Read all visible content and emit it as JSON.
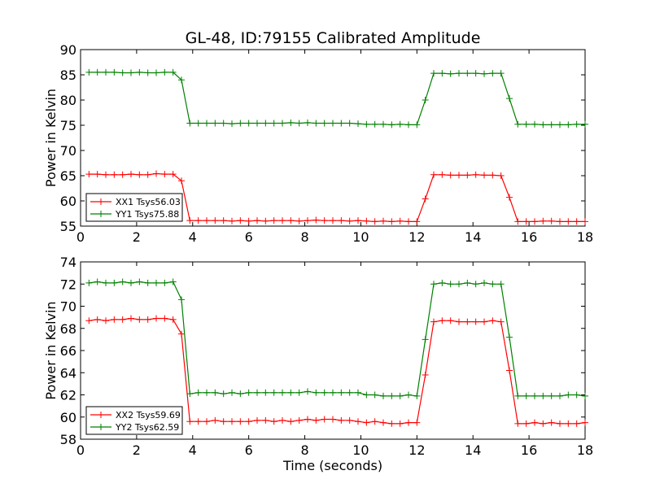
{
  "chart_data": [
    {
      "type": "line",
      "title": "GL-48, ID:79155 Calibrated Amplitude",
      "xlabel": "",
      "ylabel": "Power in Kelvin",
      "xlim": [
        0,
        18
      ],
      "ylim": [
        55,
        90
      ],
      "xticks": [
        "0",
        "2",
        "4",
        "6",
        "8",
        "10",
        "12",
        "14",
        "16",
        "18"
      ],
      "yticks": [
        "55",
        "60",
        "65",
        "70",
        "75",
        "80",
        "85",
        "90"
      ],
      "grid": false,
      "legend_position": "lower-left",
      "x": [
        0.3,
        0.6,
        0.9,
        1.2,
        1.5,
        1.8,
        2.1,
        2.4,
        2.7,
        3.0,
        3.3,
        3.6,
        3.9,
        4.2,
        4.5,
        4.8,
        5.1,
        5.4,
        5.7,
        6.0,
        6.3,
        6.6,
        6.9,
        7.2,
        7.5,
        7.8,
        8.1,
        8.4,
        8.7,
        9.0,
        9.3,
        9.6,
        9.9,
        10.2,
        10.5,
        10.8,
        11.1,
        11.4,
        11.7,
        12.0,
        12.3,
        12.6,
        12.9,
        13.2,
        13.5,
        13.8,
        14.1,
        14.4,
        14.7,
        15.0,
        15.3,
        15.6,
        15.9,
        16.2,
        16.5,
        16.8,
        17.1,
        17.4,
        17.7,
        18.0
      ],
      "series": [
        {
          "name": "XX1 Tsys56.03",
          "color": "#ff0000",
          "values": [
            65.3,
            65.3,
            65.2,
            65.2,
            65.2,
            65.3,
            65.2,
            65.2,
            65.4,
            65.3,
            65.3,
            64.0,
            56.1,
            56.1,
            56.1,
            56.1,
            56.1,
            56.0,
            56.1,
            56.0,
            56.1,
            56.0,
            56.1,
            56.1,
            56.1,
            56.0,
            56.1,
            56.2,
            56.1,
            56.1,
            56.1,
            56.0,
            56.1,
            56.0,
            55.9,
            56.0,
            55.9,
            56.0,
            55.9,
            55.9,
            60.4,
            65.2,
            65.2,
            65.1,
            65.1,
            65.1,
            65.2,
            65.1,
            65.1,
            65.0,
            60.7,
            55.9,
            55.9,
            55.9,
            56.0,
            56.0,
            55.9,
            55.9,
            55.9,
            55.9
          ]
        },
        {
          "name": "YY1 Tsys75.88",
          "color": "#008000",
          "values": [
            85.5,
            85.5,
            85.5,
            85.5,
            85.4,
            85.4,
            85.5,
            85.4,
            85.4,
            85.5,
            85.5,
            84.0,
            75.4,
            75.4,
            75.4,
            75.4,
            75.4,
            75.3,
            75.4,
            75.4,
            75.4,
            75.4,
            75.4,
            75.4,
            75.5,
            75.4,
            75.5,
            75.4,
            75.4,
            75.4,
            75.4,
            75.4,
            75.3,
            75.2,
            75.2,
            75.2,
            75.1,
            75.2,
            75.1,
            75.1,
            80.0,
            85.3,
            85.3,
            85.2,
            85.3,
            85.3,
            85.3,
            85.2,
            85.3,
            85.3,
            80.3,
            75.2,
            75.2,
            75.2,
            75.1,
            75.1,
            75.1,
            75.1,
            75.2,
            75.2
          ]
        }
      ]
    },
    {
      "type": "line",
      "title": "",
      "xlabel": "Time (seconds)",
      "ylabel": "Power in Kelvin",
      "xlim": [
        0,
        18
      ],
      "ylim": [
        58,
        74
      ],
      "xticks": [
        "0",
        "2",
        "4",
        "6",
        "8",
        "10",
        "12",
        "14",
        "16",
        "18"
      ],
      "yticks": [
        "58",
        "60",
        "62",
        "64",
        "66",
        "68",
        "70",
        "72",
        "74"
      ],
      "grid": false,
      "legend_position": "lower-left",
      "x": [
        0.3,
        0.6,
        0.9,
        1.2,
        1.5,
        1.8,
        2.1,
        2.4,
        2.7,
        3.0,
        3.3,
        3.6,
        3.9,
        4.2,
        4.5,
        4.8,
        5.1,
        5.4,
        5.7,
        6.0,
        6.3,
        6.6,
        6.9,
        7.2,
        7.5,
        7.8,
        8.1,
        8.4,
        8.7,
        9.0,
        9.3,
        9.6,
        9.9,
        10.2,
        10.5,
        10.8,
        11.1,
        11.4,
        11.7,
        12.0,
        12.3,
        12.6,
        12.9,
        13.2,
        13.5,
        13.8,
        14.1,
        14.4,
        14.7,
        15.0,
        15.3,
        15.6,
        15.9,
        16.2,
        16.5,
        16.8,
        17.1,
        17.4,
        17.7,
        18.0
      ],
      "series": [
        {
          "name": "XX2 Tsys59.69",
          "color": "#ff0000",
          "values": [
            68.7,
            68.8,
            68.7,
            68.8,
            68.8,
            68.9,
            68.8,
            68.8,
            68.9,
            68.9,
            68.8,
            67.5,
            59.6,
            59.6,
            59.6,
            59.7,
            59.6,
            59.6,
            59.6,
            59.6,
            59.7,
            59.7,
            59.6,
            59.7,
            59.6,
            59.7,
            59.8,
            59.7,
            59.8,
            59.8,
            59.7,
            59.7,
            59.6,
            59.5,
            59.6,
            59.5,
            59.4,
            59.4,
            59.5,
            59.5,
            63.8,
            68.6,
            68.7,
            68.7,
            68.6,
            68.6,
            68.6,
            68.6,
            68.7,
            68.6,
            64.2,
            59.4,
            59.4,
            59.5,
            59.4,
            59.5,
            59.4,
            59.4,
            59.4,
            59.5
          ]
        },
        {
          "name": "YY2 Tsys62.59",
          "color": "#008000",
          "values": [
            72.1,
            72.2,
            72.1,
            72.1,
            72.2,
            72.1,
            72.2,
            72.1,
            72.1,
            72.1,
            72.2,
            70.6,
            62.1,
            62.2,
            62.2,
            62.2,
            62.1,
            62.2,
            62.1,
            62.2,
            62.2,
            62.2,
            62.2,
            62.2,
            62.2,
            62.2,
            62.3,
            62.2,
            62.2,
            62.2,
            62.2,
            62.2,
            62.2,
            62.0,
            62.0,
            61.9,
            61.9,
            61.9,
            62.0,
            61.9,
            67.0,
            72.0,
            72.1,
            72.0,
            72.0,
            72.1,
            72.0,
            72.1,
            72.0,
            72.0,
            67.2,
            61.9,
            61.9,
            61.9,
            61.9,
            61.9,
            61.9,
            62.0,
            62.0,
            61.9
          ]
        }
      ]
    }
  ]
}
